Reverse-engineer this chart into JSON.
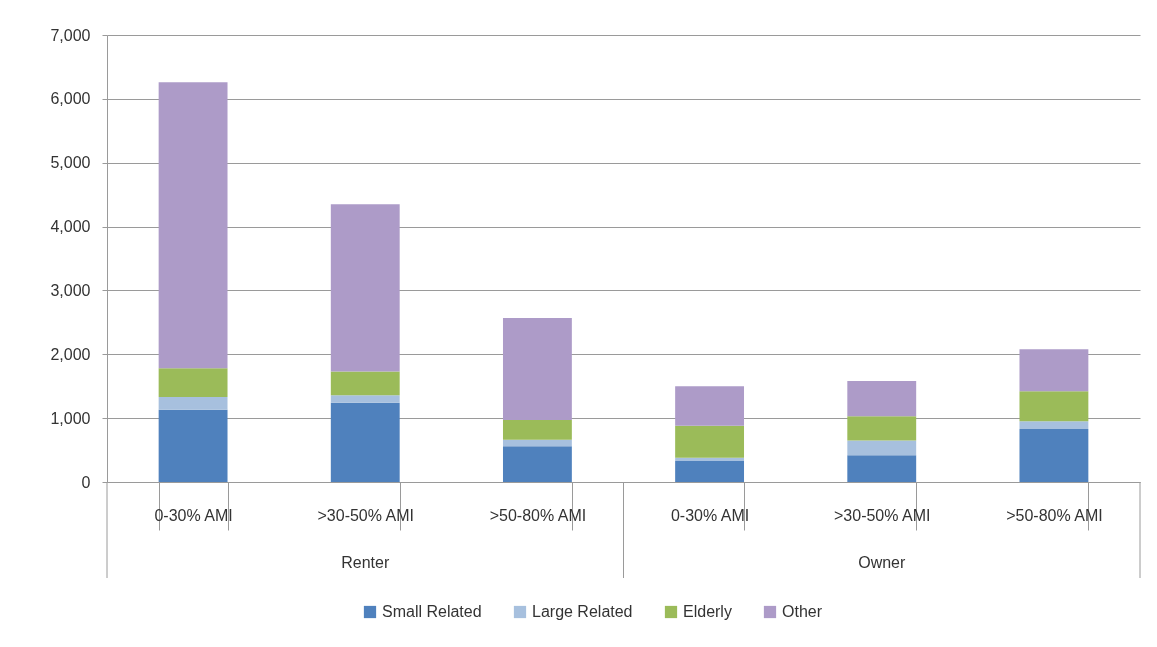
{
  "chart_data": {
    "type": "bar",
    "categories": [
      "0-30% AMI",
      ">30-50% AMI",
      ">50-80% AMI",
      "0-30% AMI",
      ">30-50% AMI",
      ">50-80% AMI"
    ],
    "series": [
      {
        "name": "Small Related",
        "color": "#4f81bd",
        "values": [
          1130,
          1240,
          560,
          330,
          420,
          830
        ]
      },
      {
        "name": "Large Related",
        "color": "#a7c0de",
        "values": [
          200,
          120,
          100,
          50,
          230,
          120
        ]
      },
      {
        "name": "Elderly",
        "color": "#9bbb59",
        "values": [
          450,
          370,
          310,
          500,
          380,
          470
        ]
      },
      {
        "name": "Other",
        "color": "#ad9bc8",
        "values": [
          4480,
          2620,
          1600,
          620,
          550,
          660
        ]
      }
    ],
    "stacked": true,
    "ylim": [
      0,
      7000
    ],
    "yticks": [
      0,
      {
        "value": 1000,
        "label": "1,000"
      },
      {
        "value": 2000,
        "label": "2,000"
      },
      {
        "value": 3000,
        "label": "3,000"
      },
      {
        "value": 4000,
        "label": "4,000"
      },
      {
        "value": 5000,
        "label": "5,000"
      },
      {
        "value": 6000,
        "label": "6,000"
      },
      {
        "value": 7000,
        "label": "7,000"
      }
    ],
    "grid": "y",
    "legend": "bottom",
    "annotations": [
      "Renter",
      "Owner"
    ]
  }
}
